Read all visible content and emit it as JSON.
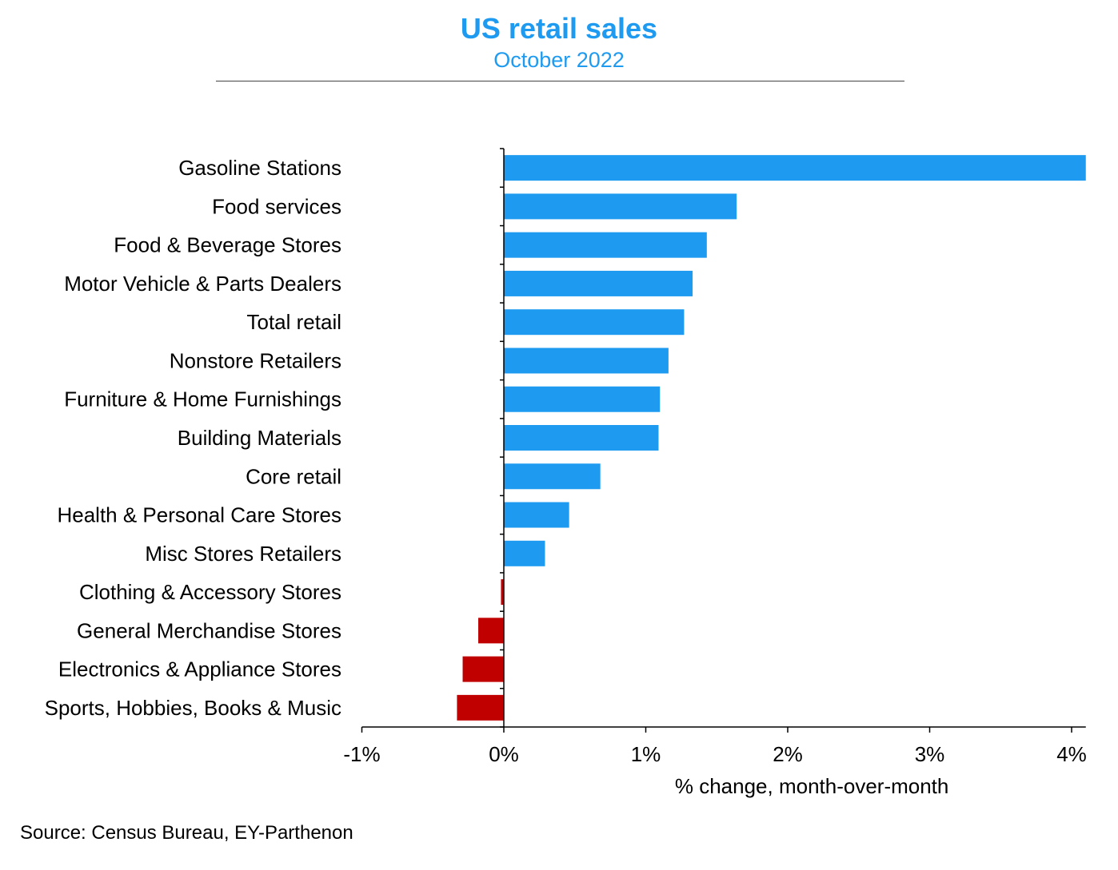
{
  "header": {
    "title": "US retail sales",
    "subtitle": "October 2022"
  },
  "footer": {
    "source": "Source: Census Bureau, EY-Parthenon"
  },
  "colors": {
    "accent": "#1e9bf0",
    "positive": "#1e9bf0",
    "negative": "#c00000"
  },
  "chart_data": {
    "type": "bar",
    "orientation": "horizontal",
    "title": "US retail sales",
    "subtitle": "October 2022",
    "xlabel": "% change, month-over-month",
    "ylabel": "",
    "xlim": [
      -1,
      4.1
    ],
    "xticks": [
      -1,
      0,
      1,
      2,
      3,
      4
    ],
    "xtick_labels": [
      "-1%",
      "0%",
      "1%",
      "2%",
      "3%",
      "4%"
    ],
    "grid": false,
    "legend": "none",
    "categories": [
      "Gasoline Stations",
      "Food services",
      "Food & Beverage Stores",
      "Motor Vehicle & Parts Dealers",
      "Total retail",
      "Nonstore Retailers",
      "Furniture & Home Furnishings",
      "Building Materials",
      "Core retail",
      "Health & Personal Care Stores",
      "Misc Stores Retailers",
      "Clothing & Accessory Stores",
      "General Merchandise Stores",
      "Electronics & Appliance Stores",
      "Sports, Hobbies, Books & Music"
    ],
    "values": [
      4.1,
      1.64,
      1.43,
      1.33,
      1.27,
      1.16,
      1.1,
      1.09,
      0.68,
      0.46,
      0.29,
      -0.02,
      -0.18,
      -0.29,
      -0.33
    ]
  }
}
